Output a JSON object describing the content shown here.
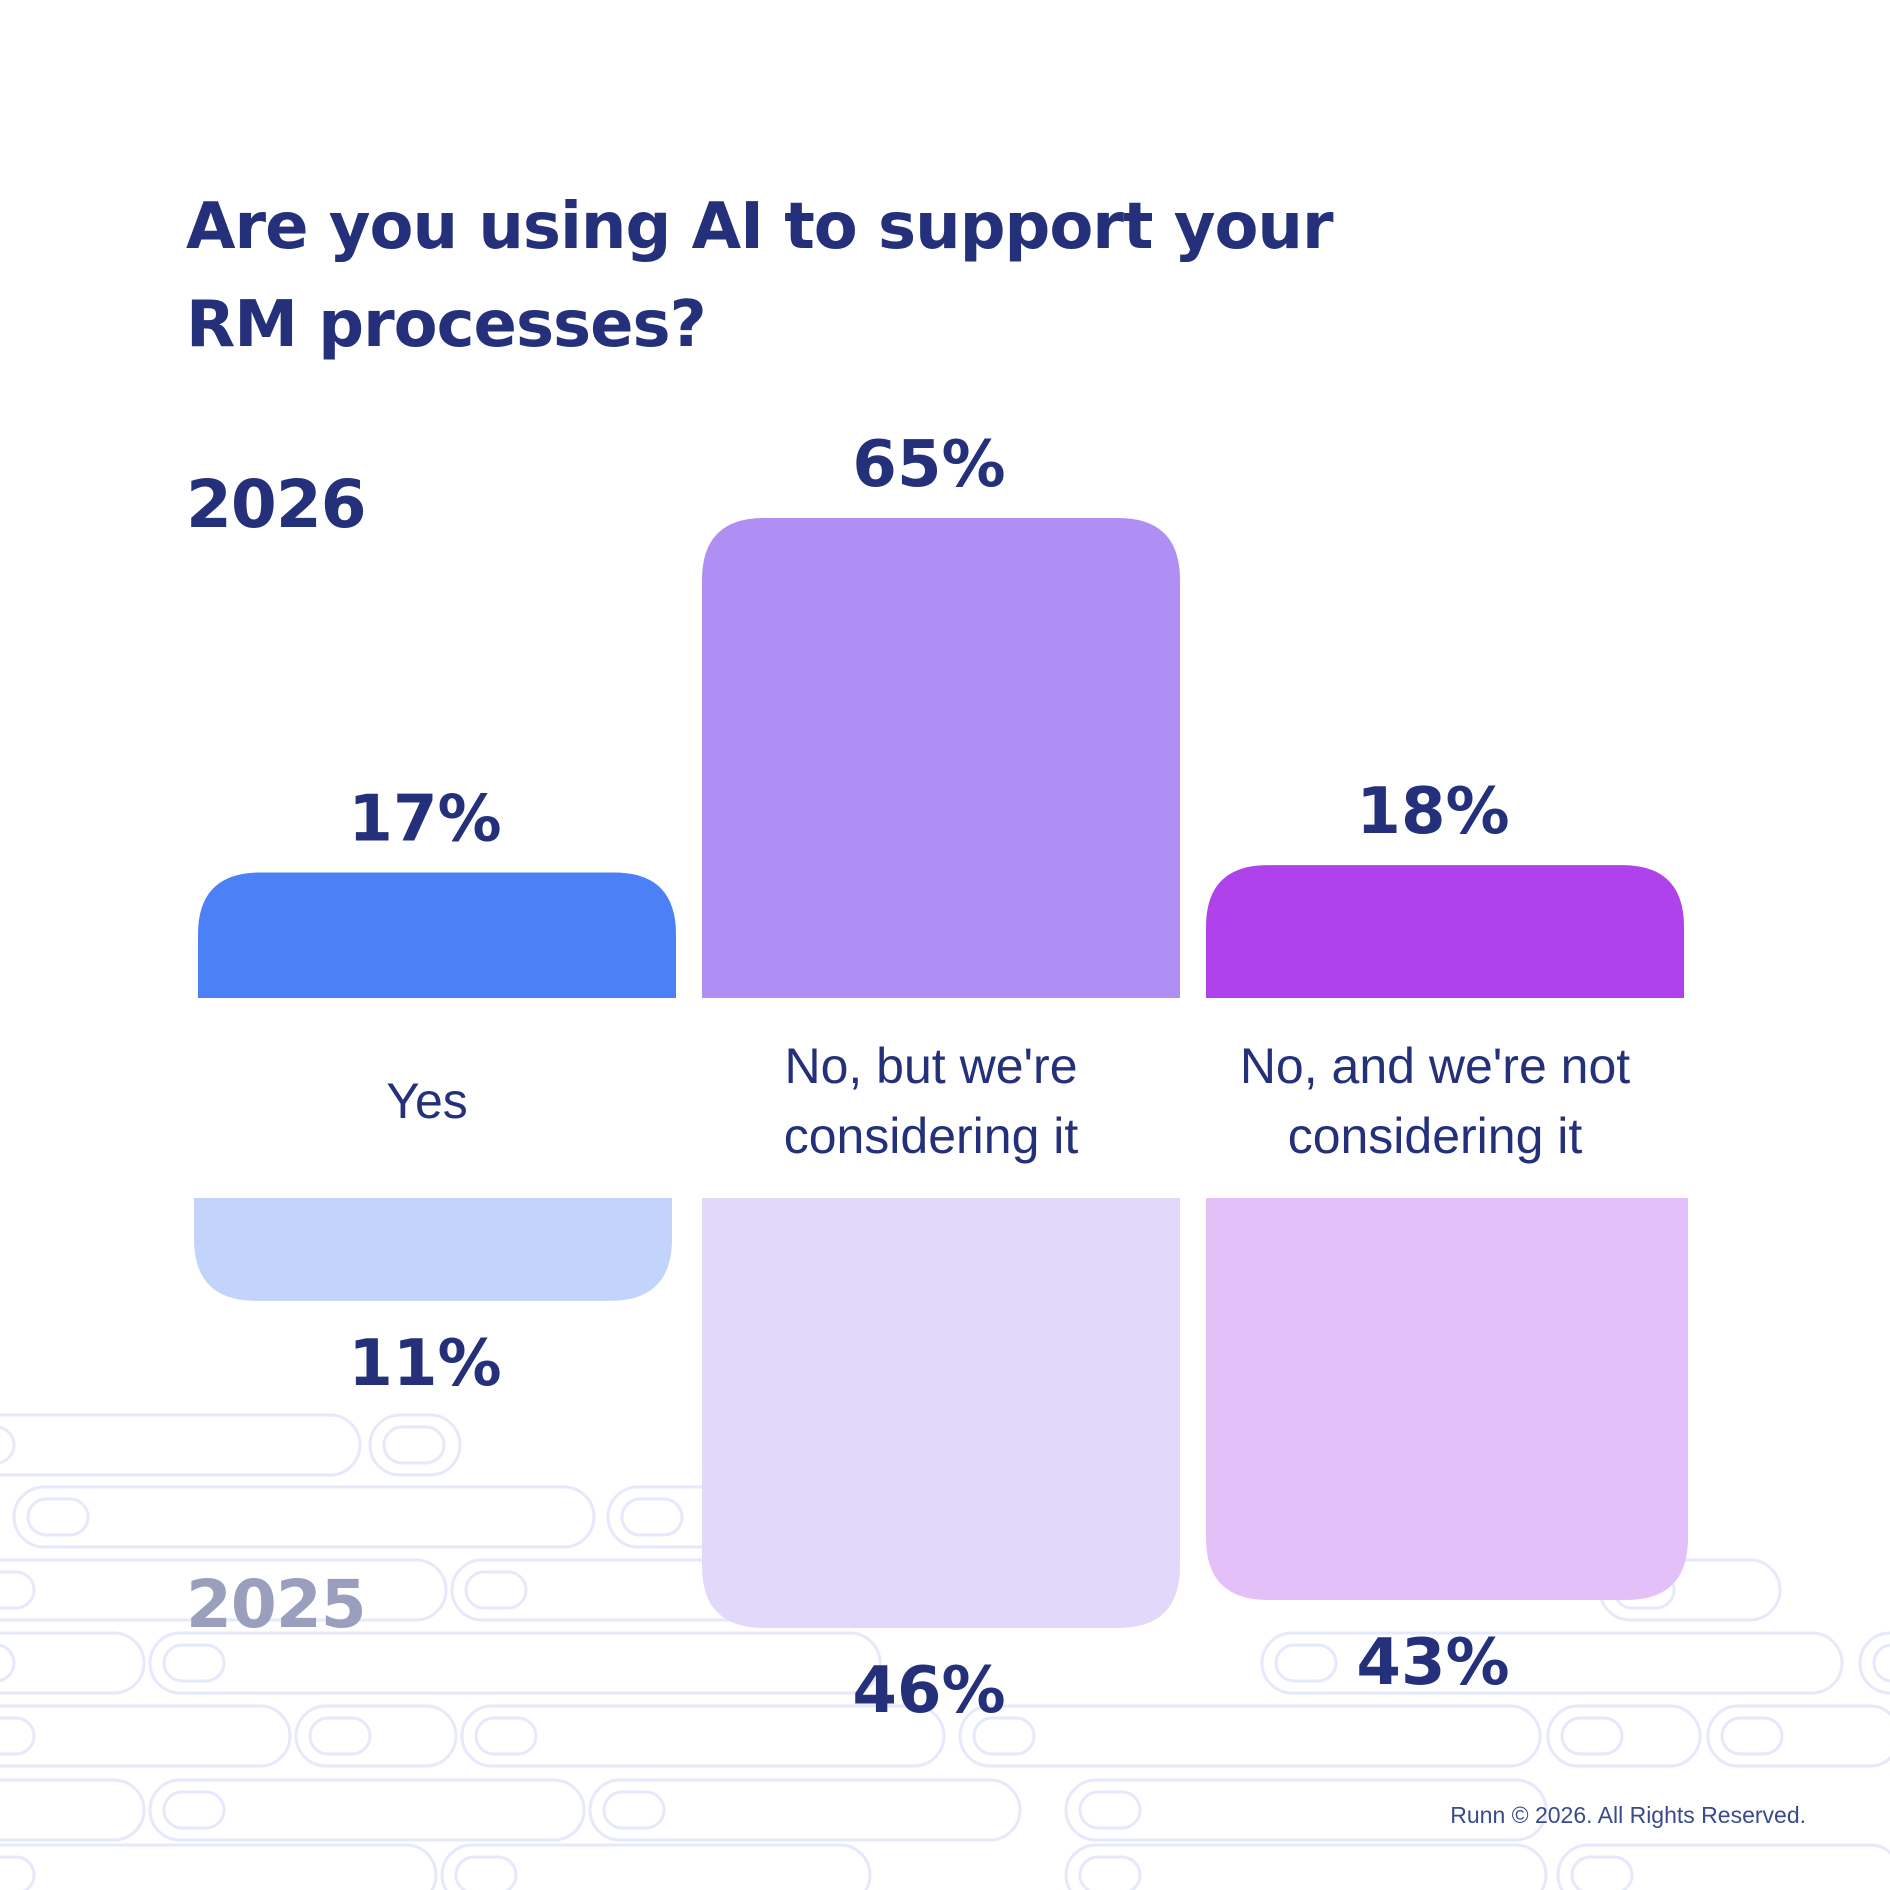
{
  "title": "Are you using AI to support your RM processes?",
  "footer": "Runn © 2026. All Rights Reserved.",
  "chart_data": {
    "type": "bar",
    "title": "Are you using AI to support your RM processes?",
    "categories": [
      "Yes",
      "No, but we're considering it",
      "No, and we're not considering it"
    ],
    "series": [
      {
        "name": "2026",
        "values": [
          17,
          65,
          18
        ],
        "labels": [
          "17%",
          "65%",
          "18%"
        ],
        "colors": [
          "#4c80f6",
          "#af8ff4",
          "#b042ec"
        ]
      },
      {
        "name": "2025",
        "values": [
          11,
          46,
          43
        ],
        "labels": [
          "11%",
          "46%",
          "43%"
        ],
        "colors": [
          "#c3d4fc",
          "#e2d8fa",
          "#e4c0f8"
        ]
      }
    ],
    "xlabel": "",
    "ylabel": "",
    "ylim": [
      0,
      65
    ],
    "grid": false,
    "legend": "none",
    "label_color": "#24317a"
  }
}
